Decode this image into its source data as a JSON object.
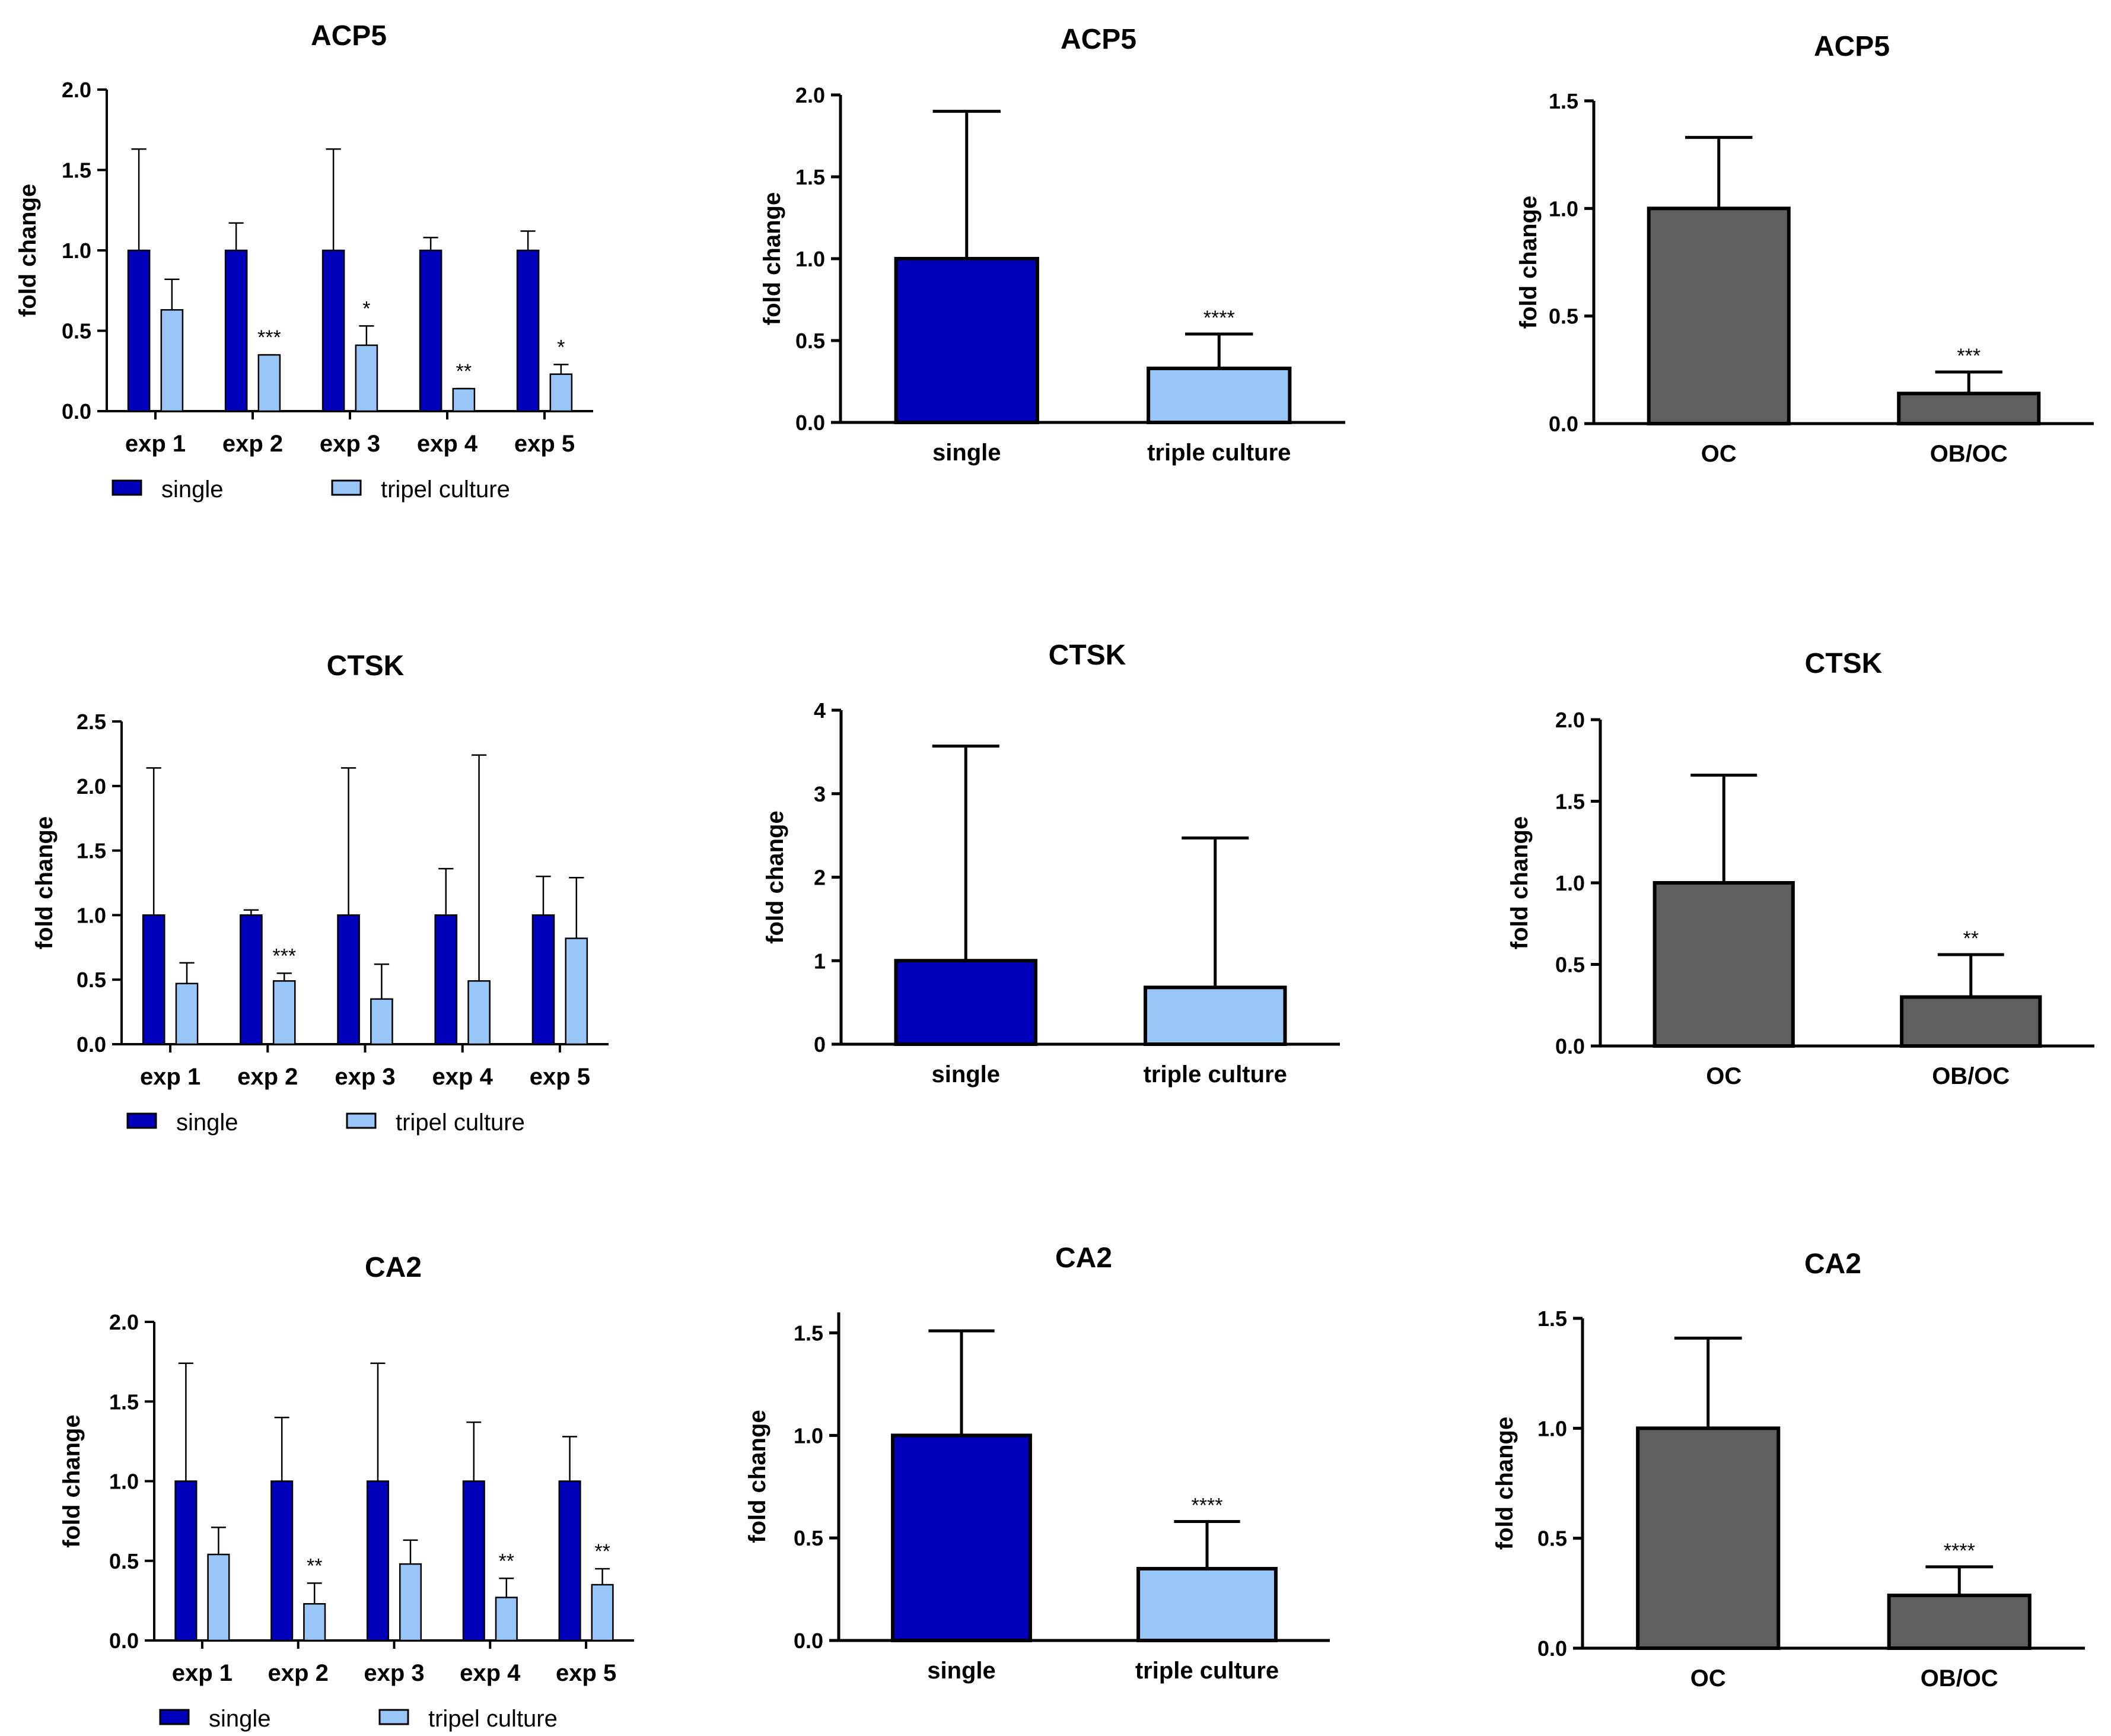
{
  "colors": {
    "single": "#0000bb",
    "triple": "#99c6f8",
    "oc": "#5f5f5f",
    "axis": "#000000"
  },
  "chart_data": [
    {
      "id": "acp5-exp",
      "type": "bar",
      "title": "ACP5",
      "ylabel": "fold change",
      "ylim": [
        0,
        2.0
      ],
      "yticks": [
        "0.0",
        "0.5",
        "1.0",
        "1.5",
        "2.0"
      ],
      "categories": [
        "exp 1",
        "exp 2",
        "exp 3",
        "exp 4",
        "exp 5"
      ],
      "series": [
        {
          "name": "single",
          "values": [
            1.0,
            1.0,
            1.0,
            1.0,
            1.0
          ],
          "errors": [
            1.63,
            1.17,
            1.63,
            1.08,
            1.12
          ],
          "sig": [
            "",
            "",
            "",
            "",
            ""
          ]
        },
        {
          "name": "tripel culture",
          "values": [
            0.63,
            0.35,
            0.41,
            0.14,
            0.23
          ],
          "errors": [
            0.82,
            0.35,
            0.53,
            0.14,
            0.29
          ],
          "sig": [
            "",
            "***",
            "*",
            "**",
            "*"
          ]
        }
      ],
      "legend": [
        "single",
        "tripel culture"
      ]
    },
    {
      "id": "acp5-sum",
      "type": "bar",
      "title": "ACP5",
      "ylabel": "fold change",
      "ylim": [
        0,
        2.0
      ],
      "yticks": [
        "0.0",
        "0.5",
        "1.0",
        "1.5",
        "2.0"
      ],
      "categories": [
        "single",
        "triple culture"
      ],
      "values": [
        1.0,
        0.33
      ],
      "errors": [
        1.9,
        0.54
      ],
      "sig": [
        "",
        "****"
      ]
    },
    {
      "id": "acp5-oc",
      "type": "bar",
      "title": "ACP5",
      "ylabel": "fold change",
      "ylim": [
        0,
        1.5
      ],
      "yticks": [
        "0.0",
        "0.5",
        "1.0",
        "1.5"
      ],
      "categories": [
        "OC",
        "OB/OC"
      ],
      "values": [
        1.0,
        0.14
      ],
      "errors": [
        1.33,
        0.24
      ],
      "sig": [
        "",
        "***"
      ]
    },
    {
      "id": "ctsk-exp",
      "type": "bar",
      "title": "CTSK",
      "ylabel": "fold change",
      "ylim": [
        0,
        2.5
      ],
      "yticks": [
        "0.0",
        "0.5",
        "1.0",
        "1.5",
        "2.0",
        "2.5"
      ],
      "categories": [
        "exp 1",
        "exp 2",
        "exp 3",
        "exp 4",
        "exp 5"
      ],
      "series": [
        {
          "name": "single",
          "values": [
            1.0,
            1.0,
            1.0,
            1.0,
            1.0
          ],
          "errors": [
            2.14,
            1.04,
            2.14,
            1.36,
            1.3
          ],
          "sig": [
            "",
            "",
            "",
            "",
            ""
          ]
        },
        {
          "name": "tripel culture",
          "values": [
            0.47,
            0.49,
            0.35,
            0.49,
            0.82
          ],
          "errors": [
            0.63,
            0.55,
            0.62,
            2.24,
            1.29
          ],
          "sig": [
            "",
            "***",
            "",
            "",
            ""
          ]
        }
      ],
      "legend": [
        "single",
        "tripel culture"
      ]
    },
    {
      "id": "ctsk-sum",
      "type": "bar",
      "title": "CTSK",
      "ylabel": "fold change",
      "ylim": [
        0,
        4
      ],
      "yticks": [
        "0",
        "1",
        "2",
        "3",
        "4"
      ],
      "categories": [
        "single",
        "triple culture"
      ],
      "values": [
        1.0,
        0.68
      ],
      "errors": [
        3.57,
        2.47
      ],
      "sig": [
        "",
        ""
      ]
    },
    {
      "id": "ctsk-oc",
      "type": "bar",
      "title": "CTSK",
      "ylabel": "fold change",
      "ylim": [
        0,
        2.0
      ],
      "yticks": [
        "0.0",
        "0.5",
        "1.0",
        "1.5",
        "2.0"
      ],
      "categories": [
        "OC",
        "OB/OC"
      ],
      "values": [
        1.0,
        0.3
      ],
      "errors": [
        1.66,
        0.56
      ],
      "sig": [
        "",
        "**"
      ]
    },
    {
      "id": "ca2-exp",
      "type": "bar",
      "title": "CA2",
      "ylabel": "fold change",
      "ylim": [
        0,
        2.0
      ],
      "yticks": [
        "0.0",
        "0.5",
        "1.0",
        "1.5",
        "2.0"
      ],
      "categories": [
        "exp 1",
        "exp 2",
        "exp 3",
        "exp 4",
        "exp 5"
      ],
      "series": [
        {
          "name": "single",
          "values": [
            1.0,
            1.0,
            1.0,
            1.0,
            1.0
          ],
          "errors": [
            1.74,
            1.4,
            1.74,
            1.37,
            1.28
          ],
          "sig": [
            "",
            "",
            "",
            "",
            ""
          ]
        },
        {
          "name": "tripel culture",
          "values": [
            0.54,
            0.23,
            0.48,
            0.27,
            0.35
          ],
          "errors": [
            0.71,
            0.36,
            0.63,
            0.39,
            0.45
          ],
          "sig": [
            "",
            "**",
            "",
            "**",
            "**"
          ]
        }
      ],
      "legend": [
        "single",
        "tripel culture"
      ]
    },
    {
      "id": "ca2-sum",
      "type": "bar",
      "title": "CA2",
      "ylabel": "fold change",
      "ylim": [
        0,
        1.6
      ],
      "yticks": [
        "0.0",
        "0.5",
        "1.0",
        "1.5"
      ],
      "categories": [
        "single",
        "triple culture"
      ],
      "values": [
        1.0,
        0.35
      ],
      "errors": [
        1.51,
        0.58
      ],
      "sig": [
        "",
        "****"
      ]
    },
    {
      "id": "ca2-oc",
      "type": "bar",
      "title": "CA2",
      "ylabel": "fold change",
      "ylim": [
        0,
        1.5
      ],
      "yticks": [
        "0.0",
        "0.5",
        "1.0",
        "1.5"
      ],
      "categories": [
        "OC",
        "OB/OC"
      ],
      "values": [
        1.0,
        0.24
      ],
      "errors": [
        1.41,
        0.37
      ],
      "sig": [
        "",
        "****"
      ]
    }
  ]
}
